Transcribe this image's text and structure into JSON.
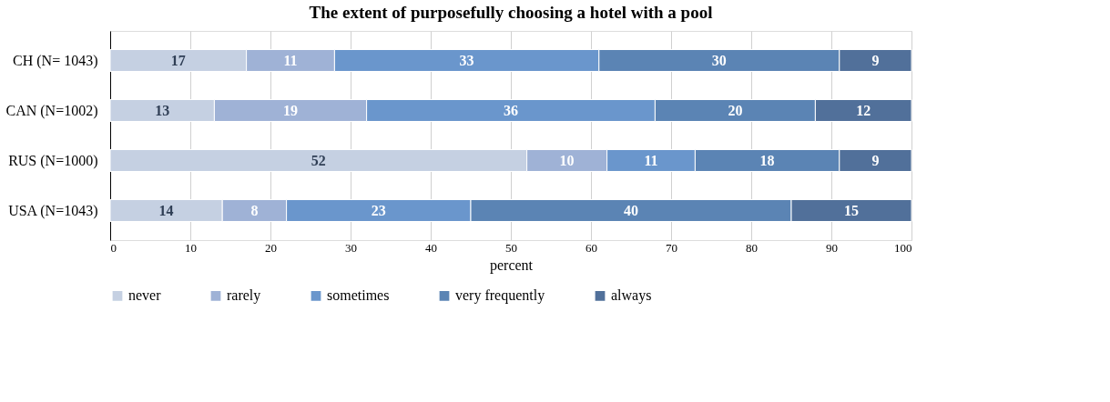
{
  "chart_data": {
    "type": "bar",
    "orientation": "horizontal",
    "stacked": true,
    "title": "The extent of purposefully choosing a hotel with a pool",
    "xlabel": "percent",
    "categories": [
      "CH (N= 1043)",
      "CAN (N=1002)",
      "RUS (N=1000)",
      "USA (N=1043)"
    ],
    "series": [
      {
        "name": "never",
        "color": "#c5d0e2",
        "values": [
          17,
          13,
          52,
          14
        ]
      },
      {
        "name": "rarely",
        "color": "#9fb2d6",
        "values": [
          11,
          19,
          10,
          8
        ]
      },
      {
        "name": "sometimes",
        "color": "#6a96cc",
        "values": [
          33,
          36,
          11,
          23
        ]
      },
      {
        "name": "very frequently",
        "color": "#5b84b4",
        "values": [
          30,
          20,
          18,
          40
        ]
      },
      {
        "name": "always",
        "color": "#51709a",
        "values": [
          9,
          12,
          9,
          15
        ]
      }
    ],
    "xlim": [
      0,
      100
    ],
    "xticks": [
      0,
      10,
      20,
      30,
      40,
      50,
      60,
      70,
      80,
      90,
      100
    ],
    "grid": "x",
    "legend": "bottom",
    "data_labels": true
  }
}
